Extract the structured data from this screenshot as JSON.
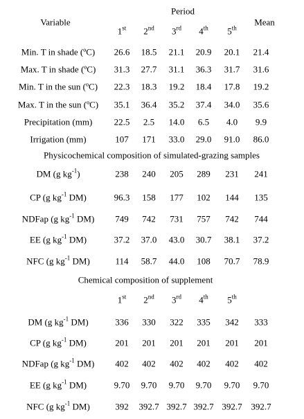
{
  "header": {
    "variable": "Variable",
    "period": "Period",
    "periods": [
      {
        "base": "1",
        "sup": "st"
      },
      {
        "base": "2",
        "sup": "nd"
      },
      {
        "base": "3",
        "sup": "rd"
      },
      {
        "base": "4",
        "sup": "th"
      },
      {
        "base": "5",
        "sup": "th"
      }
    ],
    "mean": "Mean"
  },
  "sections": [
    {
      "rows": [
        {
          "label": "Min. T in shade (ºC)",
          "values": [
            "26.6",
            "18.5",
            "21.1",
            "20.9",
            "20.1",
            "21.4"
          ]
        },
        {
          "label": "Max. T in shade (ºC)",
          "values": [
            "31.3",
            "27.7",
            "31.1",
            "36.3",
            "31.7",
            "31.6"
          ]
        },
        {
          "label": "Min. T in the sun (ºC)",
          "values": [
            "22.3",
            "18.3",
            "19.2",
            "18.4",
            "17.8",
            "19.2"
          ]
        },
        {
          "label": "Max. T in the sun (ºC)",
          "values": [
            "35.1",
            "36.4",
            "35.2",
            "37.4",
            "34.0",
            "35.6"
          ]
        },
        {
          "label": "Precipitation (mm)",
          "values": [
            "22.5",
            "2.5",
            "14.0",
            "6.5",
            "4.0",
            "9.9"
          ]
        },
        {
          "label": "Irrigation (mm)",
          "values": [
            "107",
            "171",
            "33.0",
            "29.0",
            "91.0",
            "86.0"
          ]
        }
      ]
    },
    {
      "title": "Physicochemical composition of simulated-grazing samples",
      "rows": [
        {
          "label": {
            "pre": "DM (g kg",
            "sup": "-1",
            "post": ")"
          },
          "values": [
            "238",
            "240",
            "205",
            "289",
            "231",
            "241"
          ]
        },
        {
          "label": {
            "pre": "CP (g kg",
            "sup": "-1",
            "post": " DM)"
          },
          "values": [
            "96.3",
            "158",
            "177",
            "102",
            "144",
            "135"
          ]
        },
        {
          "label": {
            "pre": "NDFap (g kg",
            "sup": "-1",
            "post": " DM)"
          },
          "values": [
            "749",
            "742",
            "731",
            "757",
            "742",
            "744"
          ]
        },
        {
          "label": {
            "pre": "EE (g kg",
            "sup": "-1",
            "post": " DM)"
          },
          "values": [
            "37.2",
            "37.0",
            "43.0",
            "30.7",
            "38.1",
            "37.2"
          ]
        },
        {
          "label": {
            "pre": "NFC (g kg",
            "sup": "-1",
            "post": " DM)"
          },
          "values": [
            "114",
            "58.7",
            "44.0",
            "108",
            "70.7",
            "78.9"
          ]
        }
      ]
    },
    {
      "title": "Chemical composition of supplement",
      "periods": [
        {
          "base": "1",
          "sup": "st"
        },
        {
          "base": "2",
          "sup": "nd"
        },
        {
          "base": "3",
          "sup": "rd"
        },
        {
          "base": "4",
          "sup": "th"
        },
        {
          "base": "5",
          "sup": "th"
        }
      ],
      "rows": [
        {
          "label": {
            "pre": "DM (g kg",
            "sup": "-1",
            "post": " DM)"
          },
          "values": [
            "336",
            "330",
            "322",
            "335",
            "342",
            "333"
          ]
        },
        {
          "label": {
            "pre": "CP (g kg",
            "sup": "-1",
            "post": " DM)"
          },
          "values": [
            "201",
            "201",
            "201",
            "201",
            "201",
            "201"
          ]
        },
        {
          "label": {
            "pre": "NDFap (g kg",
            "sup": "-1",
            "post": " DM)"
          },
          "values": [
            "402",
            "402",
            "402",
            "402",
            "402",
            "402"
          ]
        },
        {
          "label": {
            "pre": "EE (g kg",
            "sup": "-1",
            "post": " DM)"
          },
          "values": [
            "9.70",
            "9.70",
            "9.70",
            "9.70",
            "9.70",
            "9.70"
          ]
        },
        {
          "label": {
            "pre": "NFC (g kg",
            "sup": "-1",
            "post": " DM)"
          },
          "values": [
            "392",
            "392.7",
            "392.7",
            "392.7",
            "392.7",
            "392.7"
          ]
        }
      ]
    }
  ]
}
